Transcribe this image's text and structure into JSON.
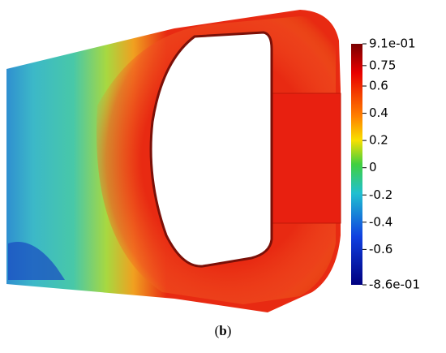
{
  "colorbar": {
    "range": [
      -0.86,
      0.91
    ],
    "ticks": [
      {
        "value": 0.91,
        "label": "9.1e-01"
      },
      0.75,
      0.6,
      0.4,
      0.2,
      0,
      -0.2,
      -0.4,
      -0.6,
      {
        "value": -0.86,
        "label": "-8.6e-01"
      }
    ]
  },
  "caption": {
    "open": "(",
    "letter": "b",
    "close": ")"
  }
}
